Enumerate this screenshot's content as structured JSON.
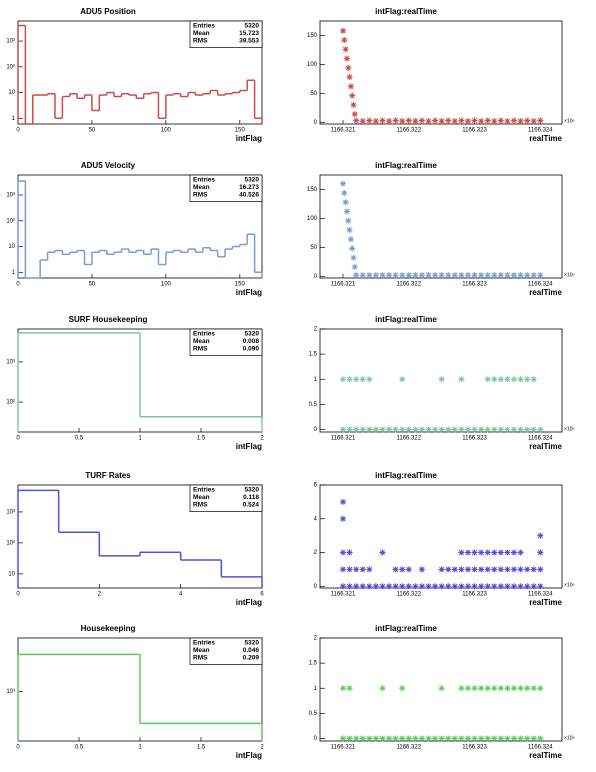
{
  "chart_data": [
    {
      "type": "histogram",
      "title": "ADU5 Position",
      "x_label": "intFlag",
      "bins": [
        0,
        5,
        10,
        15,
        20,
        25,
        30,
        35,
        40,
        45,
        50,
        55,
        60,
        65,
        70,
        75,
        80,
        85,
        90,
        95,
        100,
        105,
        110,
        115,
        120,
        125,
        130,
        135,
        140,
        145,
        150,
        155,
        160,
        165
      ],
      "values": [
        4000,
        0,
        8,
        8,
        9,
        1,
        7,
        9,
        6,
        8,
        2,
        8,
        10,
        7,
        9,
        8,
        6,
        9,
        10,
        1,
        8,
        9,
        7,
        10,
        8,
        9,
        12,
        8,
        9,
        10,
        12,
        30,
        1
      ],
      "color": "#cc4b4b",
      "log_y": true,
      "xlim": [
        0,
        165
      ],
      "xticks": [
        0,
        50,
        100,
        150
      ],
      "ylim": [
        0.6,
        6000
      ],
      "yticks": [
        1,
        10,
        {
          "value": 100,
          "label": "10²"
        },
        {
          "value": 1000,
          "label": "10³"
        }
      ],
      "stats": [
        {
          "label": "Entries",
          "value": 5320
        },
        {
          "label": "Mean",
          "value": 15.723
        },
        {
          "label": "RMS",
          "value": 39.553
        }
      ]
    },
    {
      "type": "scatter",
      "title": "intFlag:realTime",
      "x_label": "realTime",
      "x_exponent": "×10⁶",
      "color": "#cc4b4b",
      "x": [
        1166.321,
        1166.32102,
        1166.32104,
        1166.32106,
        1166.32108,
        1166.3211,
        1166.32112,
        1166.32114,
        1166.32116,
        1166.32118,
        1166.3212,
        1166.3213,
        1166.3214,
        1166.3215,
        1166.3216,
        1166.3217,
        1166.3218,
        1166.3219,
        1166.322,
        1166.3221,
        1166.3222,
        1166.3223,
        1166.3224,
        1166.3225,
        1166.3226,
        1166.3227,
        1166.3228,
        1166.3229,
        1166.323,
        1166.3231,
        1166.3232,
        1166.3233,
        1166.3234,
        1166.3235,
        1166.3236,
        1166.3237,
        1166.3238,
        1166.3239,
        1166.324
      ],
      "values": [
        158,
        142,
        126,
        110,
        94,
        78,
        62,
        46,
        30,
        14,
        3,
        2,
        3,
        2,
        3,
        2,
        3,
        2,
        3,
        2,
        3,
        2,
        3,
        2,
        3,
        2,
        3,
        2,
        3,
        2,
        3,
        2,
        3,
        2,
        3,
        2,
        3,
        2,
        3
      ],
      "xlim": [
        1166.32065,
        1166.32433
      ],
      "xticks": [
        1166.321,
        1166.322,
        1166.323,
        1166.324
      ],
      "ylim": [
        -3,
        175
      ],
      "yticks": [
        0,
        50,
        100,
        150
      ]
    },
    {
      "type": "histogram",
      "title": "ADU5 Velocity",
      "x_label": "intFlag",
      "bins": [
        0,
        5,
        10,
        15,
        20,
        25,
        30,
        35,
        40,
        45,
        50,
        55,
        60,
        65,
        70,
        75,
        80,
        85,
        90,
        95,
        100,
        105,
        110,
        115,
        120,
        125,
        130,
        135,
        140,
        145,
        150,
        155,
        160,
        165
      ],
      "values": [
        3500,
        0,
        0,
        3,
        6,
        7,
        5,
        6,
        7,
        2,
        6,
        7,
        5,
        6,
        8,
        6,
        7,
        5,
        8,
        2,
        6,
        7,
        6,
        8,
        6,
        9,
        7,
        4,
        8,
        10,
        12,
        30,
        1
      ],
      "color": "#7b9bd1",
      "log_y": true,
      "xlim": [
        0,
        165
      ],
      "xticks": [
        0,
        50,
        100,
        150
      ],
      "ylim": [
        0.6,
        6000
      ],
      "yticks": [
        1,
        10,
        {
          "value": 100,
          "label": "10²"
        },
        {
          "value": 1000,
          "label": "10³"
        }
      ],
      "stats": [
        {
          "label": "Entries",
          "value": 5320
        },
        {
          "label": "Mean",
          "value": 16.273
        },
        {
          "label": "RMS",
          "value": 40.526
        }
      ]
    },
    {
      "type": "scatter",
      "title": "intFlag:realTime",
      "x_label": "realTime",
      "x_exponent": "×10⁶",
      "color": "#7b9bd1",
      "x": [
        1166.321,
        1166.32102,
        1166.32104,
        1166.32106,
        1166.32108,
        1166.3211,
        1166.32112,
        1166.32114,
        1166.32116,
        1166.32118,
        1166.3212,
        1166.3213,
        1166.3214,
        1166.3215,
        1166.3216,
        1166.3217,
        1166.3218,
        1166.3219,
        1166.322,
        1166.3221,
        1166.3222,
        1166.3223,
        1166.3224,
        1166.3225,
        1166.3226,
        1166.3227,
        1166.3228,
        1166.3229,
        1166.323,
        1166.3231,
        1166.3232,
        1166.3233,
        1166.3234,
        1166.3235,
        1166.3236,
        1166.3237,
        1166.3238,
        1166.3239,
        1166.324
      ],
      "values": [
        160,
        144,
        128,
        112,
        96,
        80,
        64,
        48,
        32,
        16,
        2,
        2,
        2,
        2,
        2,
        2,
        2,
        2,
        2,
        2,
        2,
        2,
        2,
        2,
        2,
        2,
        2,
        2,
        2,
        2,
        2,
        2,
        2,
        2,
        2,
        2,
        2,
        2,
        2
      ],
      "xlim": [
        1166.32065,
        1166.32433
      ],
      "xticks": [
        1166.321,
        1166.322,
        1166.323,
        1166.324
      ],
      "ylim": [
        -3,
        175
      ],
      "yticks": [
        0,
        50,
        100,
        150
      ]
    },
    {
      "type": "histogram",
      "title": "SURF Housekeeping",
      "x_label": "intFlag",
      "bins": [
        0,
        1,
        2
      ],
      "values": [
        5277,
        43
      ],
      "color": "#7fc4a4",
      "log_y": true,
      "xlim": [
        0,
        2
      ],
      "xticks": [
        0,
        0.5,
        1,
        1.5,
        2
      ],
      "ylim": [
        18,
        6600
      ],
      "yticks": [
        {
          "value": 100,
          "label": "10²"
        },
        {
          "value": 1000,
          "label": "10³"
        }
      ],
      "stats": [
        {
          "label": "Entries",
          "value": 5320
        },
        {
          "label": "Mean",
          "value": 0.008
        },
        {
          "label": "RMS",
          "value": "0.090"
        }
      ]
    },
    {
      "type": "scatter",
      "title": "intFlag:realTime",
      "x_label": "realTime",
      "x_exponent": "×10⁶",
      "color": "#7fc4a4",
      "x": [
        1166.321,
        1166.3211,
        1166.3212,
        1166.3213,
        1166.3214,
        1166.3215,
        1166.3216,
        1166.3217,
        1166.3218,
        1166.3219,
        1166.322,
        1166.3221,
        1166.3222,
        1166.3223,
        1166.3224,
        1166.3225,
        1166.3226,
        1166.3227,
        1166.3228,
        1166.3229,
        1166.323,
        1166.3231,
        1166.3232,
        1166.3233,
        1166.3234,
        1166.3235,
        1166.3236,
        1166.3237,
        1166.3238,
        1166.3239,
        1166.324,
        1166.321,
        1166.3211,
        1166.3212,
        1166.3213,
        1166.3214,
        1166.3219,
        1166.3225,
        1166.3228,
        1166.3232,
        1166.3233,
        1166.3234,
        1166.3235,
        1166.3236,
        1166.3237,
        1166.3238,
        1166.3239
      ],
      "values": [
        0,
        0,
        0,
        0,
        0,
        0,
        0,
        0,
        0,
        0,
        0,
        0,
        0,
        0,
        0,
        0,
        0,
        0,
        0,
        0,
        0,
        0,
        0,
        0,
        0,
        0,
        0,
        0,
        0,
        0,
        0,
        1,
        1,
        1,
        1,
        1,
        1,
        1,
        1,
        1,
        1,
        1,
        1,
        1,
        1,
        1,
        1
      ],
      "xlim": [
        1166.32065,
        1166.32433
      ],
      "xticks": [
        1166.321,
        1166.322,
        1166.323,
        1166.324
      ],
      "ylim": [
        -0.05,
        2
      ],
      "yticks": [
        0,
        0.5,
        1,
        1.5,
        2
      ]
    },
    {
      "type": "histogram",
      "title": "TURF Rates",
      "x_label": "intFlag",
      "bins": [
        0,
        1,
        2,
        3,
        4,
        5,
        6
      ],
      "values": [
        4976,
        220,
        38,
        50,
        28,
        8
      ],
      "color": "#5050d8",
      "log_y": true,
      "xlim": [
        0,
        6
      ],
      "xticks": [
        0,
        2,
        4,
        6
      ],
      "ylim": [
        3.5,
        7400
      ],
      "yticks": [
        10,
        {
          "value": 100,
          "label": "10²"
        },
        {
          "value": 1000,
          "label": "10³"
        }
      ],
      "stats": [
        {
          "label": "Entries",
          "value": 5320
        },
        {
          "label": "Mean",
          "value": 0.118
        },
        {
          "label": "RMS",
          "value": 0.524
        }
      ]
    },
    {
      "type": "scatter",
      "title": "intFlag:realTime",
      "x_label": "realTime",
      "x_exponent": "×10⁶",
      "color": "#5050d8",
      "x": [
        1166.321,
        1166.3211,
        1166.3212,
        1166.3213,
        1166.3214,
        1166.3215,
        1166.3216,
        1166.3217,
        1166.3218,
        1166.3219,
        1166.322,
        1166.3221,
        1166.3222,
        1166.3223,
        1166.3224,
        1166.3225,
        1166.3226,
        1166.3227,
        1166.3228,
        1166.3229,
        1166.323,
        1166.3231,
        1166.3232,
        1166.3233,
        1166.3234,
        1166.3235,
        1166.3236,
        1166.3237,
        1166.3238,
        1166.3239,
        1166.324,
        1166.321,
        1166.3211,
        1166.3212,
        1166.3213,
        1166.3214,
        1166.3218,
        1166.3219,
        1166.322,
        1166.3222,
        1166.3225,
        1166.3226,
        1166.3227,
        1166.3228,
        1166.3229,
        1166.323,
        1166.3231,
        1166.3232,
        1166.3233,
        1166.3234,
        1166.3235,
        1166.3236,
        1166.3237,
        1166.3238,
        1166.3239,
        1166.324,
        1166.321,
        1166.3211,
        1166.3216,
        1166.3228,
        1166.3229,
        1166.323,
        1166.3231,
        1166.3232,
        1166.3233,
        1166.3234,
        1166.3235,
        1166.3236,
        1166.3237,
        1166.324,
        1166.324,
        1166.321,
        1166.321
      ],
      "values": [
        0,
        0,
        0,
        0,
        0,
        0,
        0,
        0,
        0,
        0,
        0,
        0,
        0,
        0,
        0,
        0,
        0,
        0,
        0,
        0,
        0,
        0,
        0,
        0,
        0,
        0,
        0,
        0,
        0,
        0,
        0,
        1,
        1,
        1,
        1,
        1,
        1,
        1,
        1,
        1,
        1,
        1,
        1,
        1,
        1,
        1,
        1,
        1,
        1,
        1,
        1,
        1,
        1,
        1,
        1,
        1,
        2,
        2,
        2,
        2,
        2,
        2,
        2,
        2,
        2,
        2,
        2,
        2,
        2,
        2,
        3,
        4,
        5
      ],
      "xlim": [
        1166.32065,
        1166.32433
      ],
      "xticks": [
        1166.321,
        1166.322,
        1166.323,
        1166.324
      ],
      "ylim": [
        -0.1,
        6
      ],
      "yticks": [
        0,
        2,
        4,
        6
      ]
    },
    {
      "type": "histogram",
      "title": "Housekeeping",
      "x_label": "intFlag",
      "bins": [
        0,
        1,
        2
      ],
      "values": [
        5075,
        245
      ],
      "color": "#5ccc5c",
      "log_y": true,
      "xlim": [
        0,
        2
      ],
      "xticks": [
        0,
        0.5,
        1,
        1.5,
        2
      ],
      "ylim": [
        113,
        10400
      ],
      "yticks": [
        {
          "value": 1000,
          "label": "10³"
        }
      ],
      "stats": [
        {
          "label": "Entries",
          "value": 5320
        },
        {
          "label": "Mean",
          "value": 0.046
        },
        {
          "label": "RMS",
          "value": 0.209
        }
      ]
    },
    {
      "type": "scatter",
      "title": "intFlag:realTime",
      "x_label": "realTime",
      "x_exponent": "×10⁶",
      "color": "#5ccc5c",
      "x": [
        1166.321,
        1166.3211,
        1166.3212,
        1166.3213,
        1166.3214,
        1166.3215,
        1166.3216,
        1166.3217,
        1166.3218,
        1166.3219,
        1166.322,
        1166.3221,
        1166.3222,
        1166.3223,
        1166.3224,
        1166.3225,
        1166.3226,
        1166.3227,
        1166.3228,
        1166.3229,
        1166.323,
        1166.3231,
        1166.3232,
        1166.3233,
        1166.3234,
        1166.3235,
        1166.3236,
        1166.3237,
        1166.3238,
        1166.3239,
        1166.324,
        1166.321,
        1166.3211,
        1166.3216,
        1166.3219,
        1166.3225,
        1166.3228,
        1166.3229,
        1166.323,
        1166.3231,
        1166.3232,
        1166.3233,
        1166.3234,
        1166.3235,
        1166.3236,
        1166.3237,
        1166.3238,
        1166.3239,
        1166.324
      ],
      "values": [
        0,
        0,
        0,
        0,
        0,
        0,
        0,
        0,
        0,
        0,
        0,
        0,
        0,
        0,
        0,
        0,
        0,
        0,
        0,
        0,
        0,
        0,
        0,
        0,
        0,
        0,
        0,
        0,
        0,
        0,
        0,
        1,
        1,
        1,
        1,
        1,
        1,
        1,
        1,
        1,
        1,
        1,
        1,
        1,
        1,
        1,
        1,
        1,
        1
      ],
      "xlim": [
        1166.32065,
        1166.32433
      ],
      "xticks": [
        1166.321,
        1166.322,
        1166.323,
        1166.324
      ],
      "ylim": [
        -0.05,
        2
      ],
      "yticks": [
        0,
        0.5,
        1,
        1.5,
        2
      ]
    }
  ]
}
